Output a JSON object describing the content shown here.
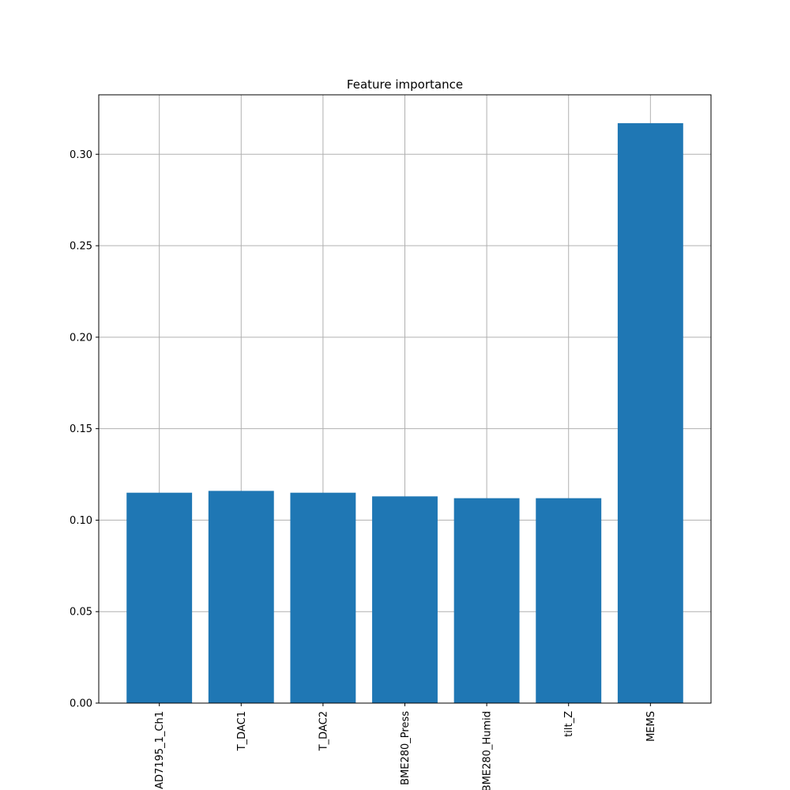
{
  "chart_data": {
    "type": "bar",
    "title": "Feature importance",
    "xlabel": "",
    "ylabel": "",
    "categories": [
      "AD7195_1_Ch1",
      "T_DAC1",
      "T_DAC2",
      "BME280_Press",
      "BME280_Humid",
      "tilt_Z",
      "MEMS"
    ],
    "values": [
      0.115,
      0.116,
      0.115,
      0.113,
      0.112,
      0.112,
      0.317
    ],
    "ylim": [
      0.0,
      0.3325
    ],
    "yticks": [
      0.0,
      0.05,
      0.1,
      0.15,
      0.2,
      0.25,
      0.3
    ],
    "ytick_labels": [
      "0.00",
      "0.05",
      "0.10",
      "0.15",
      "0.20",
      "0.25",
      "0.30"
    ],
    "grid": true,
    "legend": "none",
    "bar_color": "#1f77b4",
    "grid_color": "#b0b0b0"
  }
}
